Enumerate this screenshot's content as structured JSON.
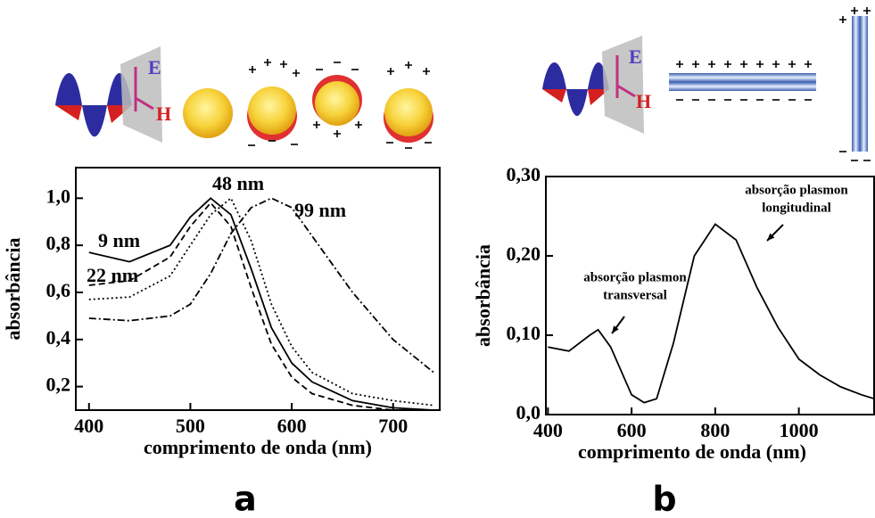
{
  "illustrations": [
    {
      "electric": "E",
      "magnetic": "H"
    },
    {
      "electric": "E",
      "magnetic": "H"
    }
  ],
  "chart_data": [
    {
      "type": "line",
      "label": "a",
      "xlabel": "comprimento de onda (nm)",
      "ylabel": "absorbância",
      "x": [
        400,
        440,
        480,
        500,
        520,
        540,
        560,
        580,
        600,
        620,
        660,
        700,
        740
      ],
      "xlim": [
        387,
        746
      ],
      "xticks": [
        400,
        500,
        600,
        700
      ],
      "ylim": [
        0.1,
        1.13
      ],
      "yticks": [
        {
          "value": 0.2,
          "label": "0,2"
        },
        {
          "value": 0.4,
          "label": "0,4"
        },
        {
          "value": 0.6,
          "label": "0,6"
        },
        {
          "value": 0.8,
          "label": "0,8"
        },
        {
          "value": 1.0,
          "label": "1,0"
        }
      ],
      "series": [
        {
          "name": "9 nm",
          "color": "#000000",
          "dash": "solid",
          "values": [
            0.77,
            0.73,
            0.8,
            0.92,
            1.0,
            0.93,
            0.7,
            0.45,
            0.3,
            0.22,
            0.14,
            0.11,
            0.1
          ]
        },
        {
          "name": "22 nm",
          "color": "#000000",
          "dash": "dashed",
          "values": [
            0.63,
            0.65,
            0.75,
            0.88,
            0.98,
            0.88,
            0.62,
            0.38,
            0.24,
            0.17,
            0.12,
            0.1,
            0.1
          ]
        },
        {
          "name": "48 nm",
          "color": "#000000",
          "dash": "dotted",
          "values": [
            0.57,
            0.58,
            0.67,
            0.8,
            0.93,
            1.0,
            0.82,
            0.55,
            0.37,
            0.26,
            0.17,
            0.14,
            0.12
          ]
        },
        {
          "name": "99 nm",
          "color": "#000000",
          "dash": "dashdot",
          "values": [
            0.49,
            0.48,
            0.5,
            0.55,
            0.68,
            0.85,
            0.96,
            1.0,
            0.96,
            0.84,
            0.6,
            0.4,
            0.26
          ]
        }
      ]
    },
    {
      "type": "line",
      "label": "b",
      "xlabel": "comprimento de onda (nm)",
      "ylabel": "absorbância",
      "x": [
        400,
        450,
        500,
        520,
        550,
        600,
        630,
        660,
        700,
        750,
        800,
        850,
        900,
        950,
        1000,
        1050,
        1100,
        1150,
        1180
      ],
      "xlim": [
        395,
        1180
      ],
      "xticks": [
        400,
        600,
        800,
        1000
      ],
      "ylim": [
        0,
        0.3
      ],
      "yticks": [
        {
          "value": 0,
          "label": "0,0"
        },
        {
          "value": 0.1,
          "label": "0,10"
        },
        {
          "value": 0.2,
          "label": "0,20"
        },
        {
          "value": 0.3,
          "label": "0,30"
        }
      ],
      "series": [
        {
          "color": "#000000",
          "dash": "solid",
          "values": [
            0.085,
            0.08,
            0.1,
            0.107,
            0.085,
            0.025,
            0.015,
            0.02,
            0.09,
            0.2,
            0.24,
            0.22,
            0.16,
            0.11,
            0.07,
            0.05,
            0.035,
            0.025,
            0.02
          ]
        }
      ],
      "annotations": [
        {
          "lines": [
            "absorção plasmon",
            "transversal"
          ]
        },
        {
          "lines": [
            "absorção plasmon",
            "longitudinal"
          ]
        }
      ]
    }
  ]
}
